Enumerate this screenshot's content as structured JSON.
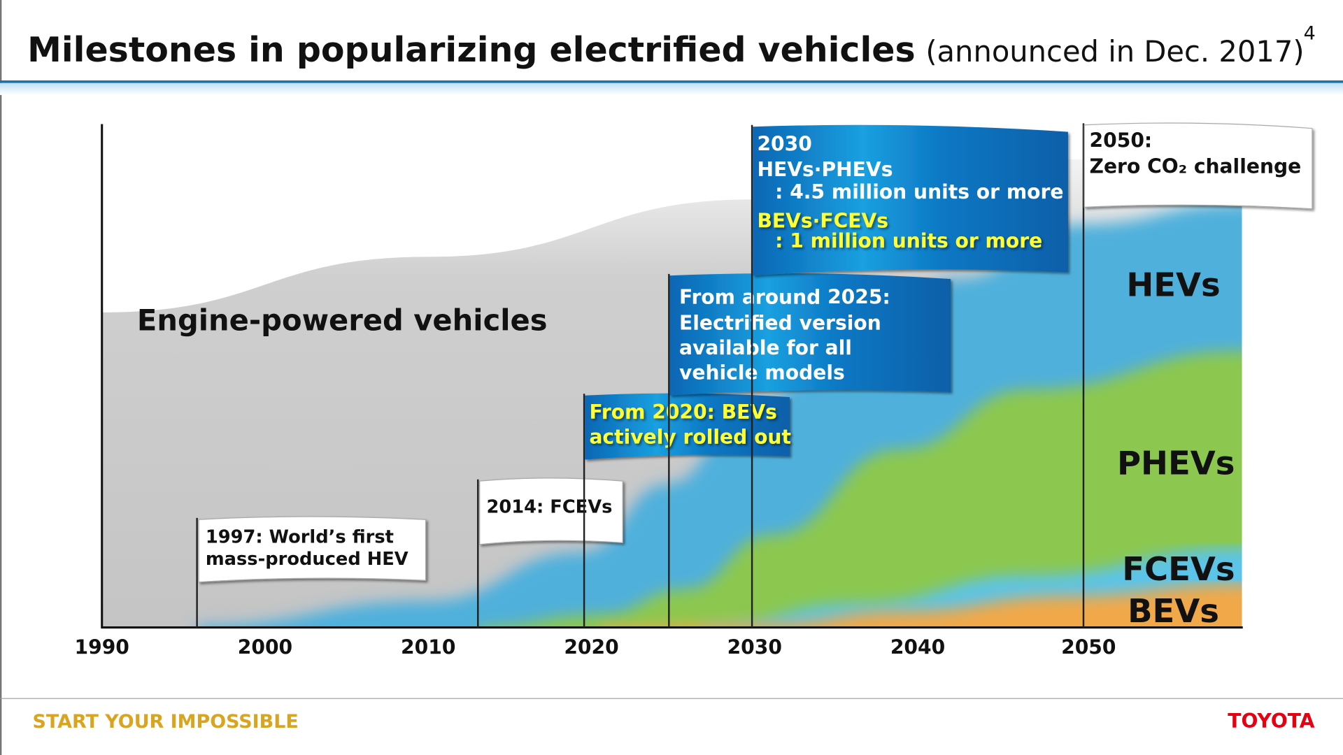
{
  "header": {
    "title": "Milestones in popularizing electrified vehicles",
    "subtitle": "(announced in Dec. 2017)",
    "page_number": "4"
  },
  "chart_data": {
    "type": "area",
    "stacked": true,
    "x_ticks": [
      "1990",
      "2000",
      "2010",
      "2020",
      "2030",
      "2040",
      "2050"
    ],
    "xlim": [
      1990,
      2060
    ],
    "y_axis_labels": false,
    "grid": false,
    "series": [
      {
        "name": "Engine-powered vehicles",
        "color": "#c8c8c8"
      },
      {
        "name": "HEVs",
        "color": "#4fb0dc"
      },
      {
        "name": "PHEVs",
        "color": "#8cc850"
      },
      {
        "name": "FCEVs",
        "color": "#5cc4e8"
      },
      {
        "name": "BEVs",
        "color": "#f0a848"
      }
    ],
    "milestones": [
      {
        "year": 1997,
        "lines": [
          "1997: World’s first",
          "mass-produced HEV"
        ],
        "style": "white"
      },
      {
        "year": 2014,
        "lines": [
          "2014: FCEVs"
        ],
        "style": "white"
      },
      {
        "year": 2020,
        "lines": [
          "From 2020: BEVs",
          "actively rolled out"
        ],
        "style": "blue-yellow"
      },
      {
        "year": 2025,
        "lines": [
          "From around 2025:",
          "Electrified version",
          "available for all",
          "vehicle models"
        ],
        "style": "blue"
      },
      {
        "year": 2030,
        "lines": [
          "2030",
          "HEVs·PHEVs",
          ": 4.5 million units or more",
          "BEVs·FCEVs",
          ": 1 million units or more"
        ],
        "style": "blue"
      },
      {
        "year": 2050,
        "lines": [
          "2050:",
          "Zero CO₂ challenge"
        ],
        "style": "white"
      }
    ]
  },
  "footer": {
    "slogan": "START YOUR IMPOSSIBLE",
    "brand": "TOYOTA",
    "slogan_color": "#d9a521",
    "brand_color": "#e50012"
  }
}
